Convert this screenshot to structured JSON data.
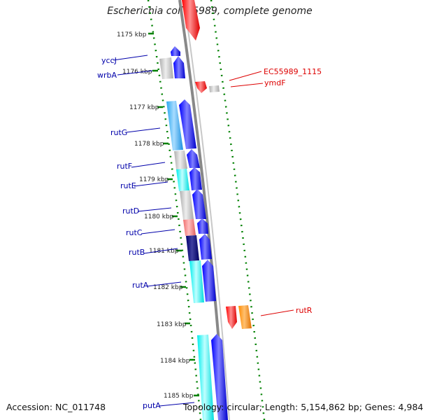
{
  "title": "Escherichia coli 55989, complete genome",
  "accession": "Accession: NC_011748",
  "summary": "Topology: circular; Length: 5,154,862 bp; Genes: 4,984",
  "ticks": [
    "1175 kbp",
    "1176 kbp",
    "1177 kbp",
    "1178 kbp",
    "1179 kbp",
    "1180 kbp",
    "1181 kbp",
    "1182 kbp",
    "1183 kbp",
    "1184 kbp",
    "1185 kbp"
  ],
  "genes_left": [
    "yccJ",
    "wrbA",
    "rutG",
    "rutF",
    "rutE",
    "rutD",
    "rutC",
    "rutB",
    "rutA",
    "putA"
  ],
  "genes_right": [
    "EC55989_1115",
    "ymdF",
    "rutR"
  ],
  "colors": {
    "forward_cds": "#0000ee",
    "reverse_cds": "#ff0000",
    "other_reverse": "#ff8c00",
    "left_label": "#0000aa",
    "right_label": "#dd0000",
    "tick": "#008000",
    "backbone": "#888888",
    "cyan": "#00ffff",
    "light_blue": "#3db8ff",
    "grey": "#c0c0c0",
    "pink": "#f08080",
    "navy": "#00008b"
  }
}
